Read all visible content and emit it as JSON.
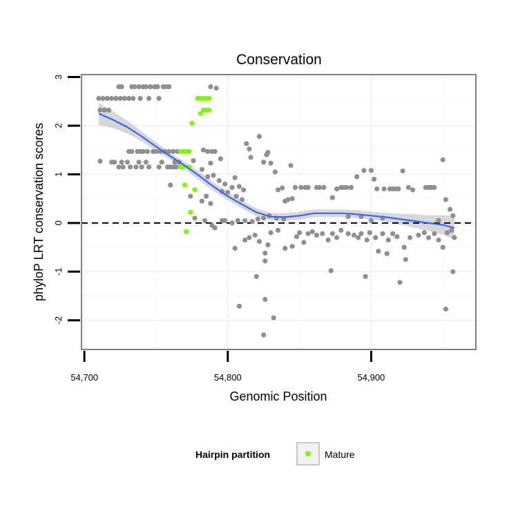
{
  "chart_data": {
    "type": "scatter",
    "title": "Conservation",
    "xlabel": "Genomic Position",
    "ylabel": "phyloP LRT conservation scores",
    "xlim": [
      54698,
      54973
    ],
    "ylim": [
      -2.6,
      3.05
    ],
    "x_ticks": [
      54700,
      54800,
      54900
    ],
    "x_tick_labels": [
      "54,700",
      "54,800",
      "54,900"
    ],
    "y_ticks": [
      -2,
      -1,
      0,
      1,
      2,
      3
    ],
    "y_tick_labels": [
      "-2",
      "-1",
      "0",
      "1",
      "2",
      "3"
    ],
    "reference_line": {
      "y": 0,
      "style": "dashed"
    },
    "grid": true,
    "legend": {
      "title": "Hairpin partition",
      "position": "bottom",
      "entries": [
        {
          "label": "Mature",
          "color": "#7cfc00"
        }
      ]
    },
    "colors": {
      "background_points": "#8f8f8f",
      "mature": "#7cfc00",
      "smooth": "#3366ff",
      "ribbon": "#bdbdbd"
    },
    "series": [
      {
        "name": "Background",
        "color": "#8f8f8f",
        "points": [
          [
            54710,
            2.56
          ],
          [
            54713,
            2.56
          ],
          [
            54716,
            2.56
          ],
          [
            54719,
            2.56
          ],
          [
            54722,
            2.56
          ],
          [
            54725,
            2.56
          ],
          [
            54728,
            2.56
          ],
          [
            54731,
            2.56
          ],
          [
            54734,
            2.56
          ],
          [
            54739,
            2.56
          ],
          [
            54745,
            2.56
          ],
          [
            54752,
            2.56
          ],
          [
            54711,
            2.32
          ],
          [
            54714,
            2.32
          ],
          [
            54717,
            2.32
          ],
          [
            54724,
            2.8
          ],
          [
            54726,
            2.8
          ],
          [
            54733,
            2.8
          ],
          [
            54735,
            2.8
          ],
          [
            54738,
            2.8
          ],
          [
            54741,
            2.8
          ],
          [
            54743,
            2.8
          ],
          [
            54746,
            2.8
          ],
          [
            54749,
            2.8
          ],
          [
            54751,
            2.8
          ],
          [
            54755,
            2.8
          ],
          [
            54757,
            2.8
          ],
          [
            54759,
            2.8
          ],
          [
            54788,
            2.8
          ],
          [
            54792,
            2.77
          ],
          [
            54731,
            1.47
          ],
          [
            54733,
            1.47
          ],
          [
            54737,
            1.47
          ],
          [
            54739,
            1.47
          ],
          [
            54741,
            1.47
          ],
          [
            54744,
            1.47
          ],
          [
            54748,
            1.47
          ],
          [
            54750,
            1.47
          ],
          [
            54753,
            1.47
          ],
          [
            54756,
            1.47
          ],
          [
            54759,
            1.47
          ],
          [
            54762,
            1.47
          ],
          [
            54765,
            1.47
          ],
          [
            54719,
            1.25
          ],
          [
            54721,
            1.25
          ],
          [
            54726,
            1.25
          ],
          [
            54730,
            1.25
          ],
          [
            54738,
            1.25
          ],
          [
            54743,
            1.25
          ],
          [
            54754,
            1.25
          ],
          [
            54763,
            1.25
          ],
          [
            54766,
            1.25
          ],
          [
            54776,
            1.28
          ],
          [
            54724,
            1.15
          ],
          [
            54727,
            1.15
          ],
          [
            54732,
            1.15
          ],
          [
            54736,
            1.15
          ],
          [
            54740,
            1.15
          ],
          [
            54745,
            1.15
          ],
          [
            54752,
            1.15
          ],
          [
            54758,
            1.15
          ],
          [
            54760,
            1.15
          ],
          [
            54762,
            1.15
          ],
          [
            54764,
            1.15
          ],
          [
            54711,
            1.27
          ],
          [
            54783,
            1.5
          ],
          [
            54786,
            1.47
          ],
          [
            54789,
            1.47
          ],
          [
            54791,
            1.47
          ],
          [
            54788,
            1.23
          ],
          [
            54782,
            1.1
          ],
          [
            54790,
            0.98
          ],
          [
            54786,
            0.95
          ],
          [
            54794,
            0.87
          ],
          [
            54798,
            0.8
          ],
          [
            54803,
            0.73
          ],
          [
            54796,
            0.65
          ],
          [
            54800,
            0.63
          ],
          [
            54785,
            0.55
          ],
          [
            54774,
            0.55
          ],
          [
            54782,
            0.45
          ],
          [
            54788,
            0.4
          ],
          [
            54760,
            0.78
          ],
          [
            54795,
            1.32
          ],
          [
            54805,
            0.93
          ],
          [
            54808,
            0.75
          ],
          [
            54811,
            0.68
          ],
          [
            54806,
            0.55
          ],
          [
            54810,
            0.48
          ],
          [
            54813,
            1.63
          ],
          [
            54815,
            1.52
          ],
          [
            54816,
            1.35
          ],
          [
            54822,
            1.78
          ],
          [
            54825,
            1.25
          ],
          [
            54827,
            1.4
          ],
          [
            54828,
            1.45
          ],
          [
            54830,
            1.23
          ],
          [
            54833,
            1.05
          ],
          [
            54844,
            1.18
          ],
          [
            54777,
            0.1
          ],
          [
            54784,
            0.05
          ],
          [
            54789,
            -0.05
          ],
          [
            54791,
            -0.1
          ],
          [
            54796,
            0.05
          ],
          [
            54798,
            0.05
          ],
          [
            54803,
            0.0
          ],
          [
            54807,
            0.05
          ],
          [
            54812,
            0.05
          ],
          [
            54817,
            0.03
          ],
          [
            54821,
            0.08
          ],
          [
            54825,
            0.1
          ],
          [
            54829,
            0.15
          ],
          [
            54834,
            0.1
          ],
          [
            54839,
            0.08
          ],
          [
            54805,
            -0.52
          ],
          [
            54812,
            -0.35
          ],
          [
            54815,
            -0.3
          ],
          [
            54819,
            -0.25
          ],
          [
            54822,
            -0.38
          ],
          [
            54826,
            -0.62
          ],
          [
            54828,
            -0.45
          ],
          [
            54830,
            -0.2
          ],
          [
            54835,
            -0.15
          ],
          [
            54840,
            -0.52
          ],
          [
            54845,
            -0.48
          ],
          [
            54826,
            -0.78
          ],
          [
            54820,
            -1.1
          ],
          [
            54826,
            -1.57
          ],
          [
            54832,
            -1.95
          ],
          [
            54808,
            -1.71
          ],
          [
            54825,
            -2.3
          ],
          [
            54835,
            0.68
          ],
          [
            54838,
            0.72
          ],
          [
            54840,
            0.45
          ],
          [
            54842,
            0.48
          ],
          [
            54845,
            0.5
          ],
          [
            54847,
            0.73
          ],
          [
            54851,
            0.73
          ],
          [
            54854,
            0.73
          ],
          [
            54856,
            0.73
          ],
          [
            54862,
            0.73
          ],
          [
            54864,
            0.73
          ],
          [
            54867,
            0.73
          ],
          [
            54873,
            0.52
          ],
          [
            54876,
            0.7
          ],
          [
            54879,
            0.73
          ],
          [
            54881,
            0.73
          ],
          [
            54883,
            0.73
          ],
          [
            54886,
            0.73
          ],
          [
            54890,
            0.95
          ],
          [
            54895,
            1.08
          ],
          [
            54900,
            1.08
          ],
          [
            54902,
            0.9
          ],
          [
            54904,
            0.7
          ],
          [
            54909,
            0.7
          ],
          [
            54913,
            0.7
          ],
          [
            54915,
            0.7
          ],
          [
            54917,
            0.7
          ],
          [
            54919,
            0.7
          ],
          [
            54922,
            1.07
          ],
          [
            54926,
            0.73
          ],
          [
            54929,
            0.68
          ],
          [
            54938,
            0.73
          ],
          [
            54940,
            0.73
          ],
          [
            54942,
            0.73
          ],
          [
            54944,
            0.73
          ],
          [
            54950,
            1.3
          ],
          [
            54952,
            0.48
          ],
          [
            54955,
            0.28
          ],
          [
            54957,
            0.15
          ],
          [
            54848,
            -0.28
          ],
          [
            54850,
            -0.2
          ],
          [
            54853,
            -0.4
          ],
          [
            54856,
            -0.22
          ],
          [
            54859,
            -0.18
          ],
          [
            54862,
            -0.25
          ],
          [
            54866,
            -0.22
          ],
          [
            54870,
            -0.35
          ],
          [
            54873,
            -0.22
          ],
          [
            54876,
            -0.3
          ],
          [
            54879,
            -0.15
          ],
          [
            54884,
            -0.22
          ],
          [
            54888,
            -0.25
          ],
          [
            54891,
            -0.3
          ],
          [
            54893,
            -0.22
          ],
          [
            54897,
            -0.35
          ],
          [
            54899,
            -0.2
          ],
          [
            54903,
            -0.3
          ],
          [
            54908,
            -0.22
          ],
          [
            54912,
            -0.35
          ],
          [
            54915,
            -0.22
          ],
          [
            54918,
            -0.28
          ],
          [
            54923,
            -0.5
          ],
          [
            54927,
            -0.3
          ],
          [
            54933,
            -0.25
          ],
          [
            54937,
            -0.2
          ],
          [
            54940,
            -0.3
          ],
          [
            54944,
            -0.22
          ],
          [
            54947,
            -0.35
          ],
          [
            54950,
            -0.5
          ],
          [
            54953,
            -0.2
          ],
          [
            54956,
            -0.15
          ],
          [
            54958,
            -0.3
          ],
          [
            54872,
            -0.98
          ],
          [
            54896,
            -1.1
          ],
          [
            54905,
            -0.58
          ],
          [
            54911,
            -0.63
          ],
          [
            54920,
            -1.22
          ],
          [
            54924,
            -0.75
          ],
          [
            54957,
            -1.0
          ],
          [
            54952,
            -1.77
          ],
          [
            54884,
            0.13
          ],
          [
            54893,
            0.13
          ],
          [
            54900,
            0.05
          ],
          [
            54908,
            0.1
          ],
          [
            54947,
            0.05
          ]
        ]
      },
      {
        "name": "Mature",
        "color": "#7cfc00",
        "points": [
          [
            54779,
            2.56
          ],
          [
            54781,
            2.56
          ],
          [
            54783,
            2.56
          ],
          [
            54785,
            2.56
          ],
          [
            54787,
            2.56
          ],
          [
            54783,
            2.32
          ],
          [
            54785,
            2.32
          ],
          [
            54787,
            2.32
          ],
          [
            54781,
            2.25
          ],
          [
            54775,
            2.05
          ],
          [
            54767,
            1.47
          ],
          [
            54769,
            1.47
          ],
          [
            54771,
            1.47
          ],
          [
            54773,
            1.47
          ],
          [
            54767,
            1.15
          ],
          [
            54769,
            1.15
          ],
          [
            54773,
            1.15
          ],
          [
            54770,
            0.78
          ],
          [
            54777,
            0.68
          ],
          [
            54774,
            0.22
          ],
          [
            54771,
            -0.18
          ]
        ]
      },
      {
        "name": "Smooth (loess)",
        "color": "#3366ff",
        "points": [
          [
            54710,
            2.25
          ],
          [
            54720,
            2.12
          ],
          [
            54730,
            1.97
          ],
          [
            54740,
            1.78
          ],
          [
            54750,
            1.57
          ],
          [
            54760,
            1.37
          ],
          [
            54770,
            1.18
          ],
          [
            54780,
            0.97
          ],
          [
            54790,
            0.75
          ],
          [
            54800,
            0.55
          ],
          [
            54810,
            0.38
          ],
          [
            54820,
            0.22
          ],
          [
            54830,
            0.13
          ],
          [
            54840,
            0.12
          ],
          [
            54850,
            0.15
          ],
          [
            54860,
            0.2
          ],
          [
            54870,
            0.2
          ],
          [
            54880,
            0.2
          ],
          [
            54890,
            0.18
          ],
          [
            54900,
            0.15
          ],
          [
            54910,
            0.12
          ],
          [
            54920,
            0.08
          ],
          [
            54930,
            0.04
          ],
          [
            54940,
            0.0
          ],
          [
            54950,
            -0.04
          ],
          [
            54958,
            -0.1
          ]
        ]
      }
    ],
    "ribbon": {
      "x": [
        54710,
        54720,
        54730,
        54740,
        54750,
        54760,
        54770,
        54780,
        54790,
        54800,
        54810,
        54820,
        54830,
        54840,
        54850,
        54860,
        54870,
        54880,
        54890,
        54900,
        54910,
        54920,
        54930,
        54940,
        54950,
        54958
      ],
      "lower": [
        2.02,
        1.95,
        1.84,
        1.68,
        1.48,
        1.3,
        1.1,
        0.88,
        0.66,
        0.47,
        0.3,
        0.14,
        0.05,
        0.04,
        0.07,
        0.12,
        0.12,
        0.12,
        0.1,
        0.07,
        0.03,
        -0.03,
        -0.1,
        -0.16,
        -0.24,
        -0.34
      ],
      "upper": [
        2.48,
        2.29,
        2.1,
        1.88,
        1.66,
        1.44,
        1.26,
        1.06,
        0.84,
        0.63,
        0.46,
        0.3,
        0.21,
        0.2,
        0.23,
        0.28,
        0.28,
        0.28,
        0.26,
        0.23,
        0.21,
        0.19,
        0.18,
        0.16,
        0.16,
        0.14
      ]
    }
  }
}
